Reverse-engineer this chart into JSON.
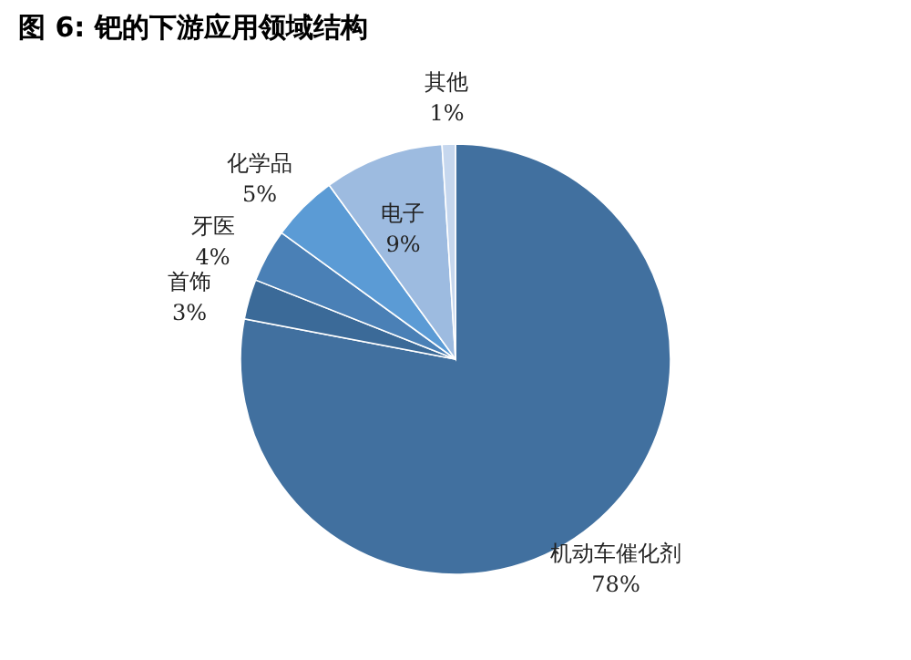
{
  "chart_data": {
    "type": "pie",
    "title": "图 6: 钯的下游应用领域结构",
    "categories": [
      "机动车催化剂",
      "首饰",
      "牙医",
      "化学品",
      "电子",
      "其他"
    ],
    "values": [
      78,
      3,
      4,
      5,
      9,
      1
    ],
    "value_labels": [
      "78%",
      "3%",
      "4%",
      "5%",
      "9%",
      "1%"
    ],
    "colors": [
      "#41709f",
      "#3b6a98",
      "#4a80b6",
      "#5b9bd5",
      "#9dbbe0",
      "#c6d7ee"
    ],
    "legend": false
  }
}
